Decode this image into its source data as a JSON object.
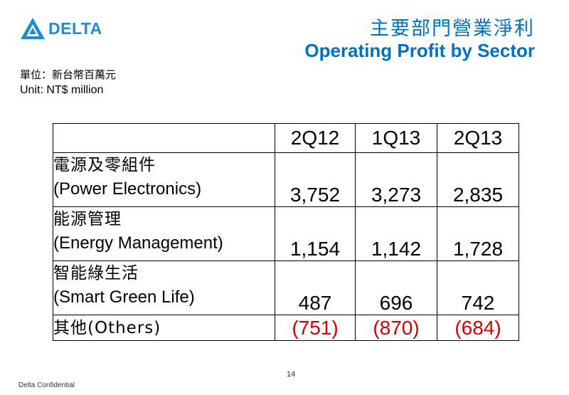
{
  "header": {
    "logo_text": "DELTA",
    "title_cn": "主要部門營業淨利",
    "title_en": "Operating Profit by Sector"
  },
  "unit": {
    "cn": "單位：新台幣百萬元",
    "en": "Unit: NT$ million"
  },
  "table": {
    "columns": [
      "",
      "2Q12",
      "1Q13",
      "2Q13"
    ],
    "rows": [
      {
        "label_cn": "電源及零組件",
        "label_en": "(Power Electronics)",
        "values": [
          "3,752",
          "3,273",
          "2,835"
        ]
      },
      {
        "label_cn": "能源管理",
        "label_en": "(Energy Management)",
        "values": [
          "1,154",
          "1,142",
          "1,728"
        ]
      },
      {
        "label_cn": "智能綠生活",
        "label_en": "(Smart Green Life)",
        "values": [
          "487",
          "696",
          "742"
        ]
      }
    ],
    "others": {
      "label": "其他(Others)",
      "values": [
        "(751)",
        "(870)",
        "(684)"
      ]
    }
  },
  "footer": {
    "page_number": "14",
    "confidential": "Delta Confidential"
  },
  "colors": {
    "brand_blue": "#0070c0",
    "logo_blue": "#1a8fd2",
    "negative_red": "#d00000"
  }
}
